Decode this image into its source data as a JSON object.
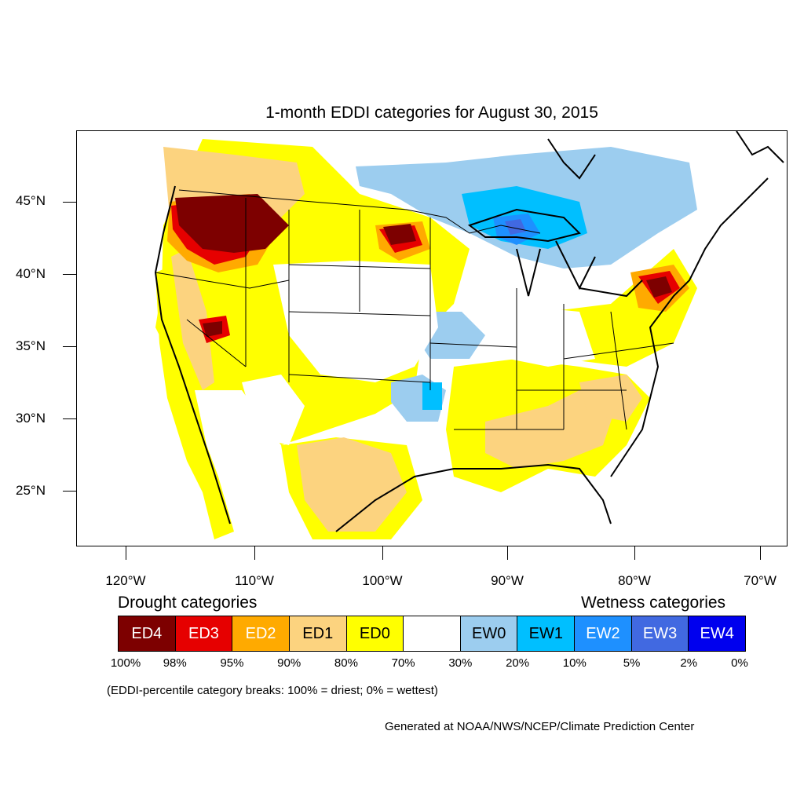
{
  "title": "1-month EDDI categories for August 30, 2015",
  "axes": {
    "y_labels": [
      "45°N",
      "40°N",
      "35°N",
      "30°N",
      "25°N"
    ],
    "x_labels": [
      "120°W",
      "110°W",
      "100°W",
      "90°W",
      "80°W",
      "70°W"
    ]
  },
  "legend": {
    "drought_heading": "Drought categories",
    "wetness_heading": "Wetness categories",
    "categories": [
      {
        "label": "ED4",
        "color": "#7d0000",
        "text_color": "#ffffff"
      },
      {
        "label": "ED3",
        "color": "#e60000",
        "text_color": "#ffffff"
      },
      {
        "label": "ED2",
        "color": "#ffaa00",
        "text_color": "#ffffff"
      },
      {
        "label": "ED1",
        "color": "#fcd37f",
        "text_color": "#000000"
      },
      {
        "label": "ED0",
        "color": "#ffff00",
        "text_color": "#000000"
      },
      {
        "label": "",
        "color": "#ffffff",
        "text_color": "#000000"
      },
      {
        "label": "EW0",
        "color": "#9ccdef",
        "text_color": "#000000"
      },
      {
        "label": "EW1",
        "color": "#00bfff",
        "text_color": "#000000"
      },
      {
        "label": "EW2",
        "color": "#1e90ff",
        "text_color": "#ffffff"
      },
      {
        "label": "EW3",
        "color": "#4169e1",
        "text_color": "#ffffff"
      },
      {
        "label": "EW4",
        "color": "#0000ee",
        "text_color": "#ffffff"
      }
    ],
    "breaks": [
      "100%",
      "98%",
      "95%",
      "90%",
      "80%",
      "70%",
      "30%",
      "20%",
      "10%",
      "5%",
      "2%",
      "0%"
    ]
  },
  "note": "(EDDI-percentile category breaks: 100% = driest; 0% = wettest)",
  "credit": "Generated at NOAA/NWS/NCEP/Climate Prediction Center"
}
